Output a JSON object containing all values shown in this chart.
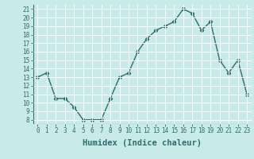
{
  "x": [
    0,
    1,
    2,
    3,
    4,
    5,
    6,
    7,
    8,
    9,
    10,
    11,
    12,
    13,
    14,
    15,
    16,
    17,
    18,
    19,
    20,
    21,
    22,
    23
  ],
  "y": [
    13,
    13.5,
    10.5,
    10.5,
    9.5,
    8,
    8,
    8,
    10.5,
    13,
    13.5,
    16,
    17.5,
    18.5,
    19,
    19.5,
    21,
    20.5,
    18.5,
    19.5,
    15,
    13.5,
    15,
    11
  ],
  "line_color": "#2d6e6e",
  "marker": "D",
  "marker_size": 2.2,
  "bg_color": "#c8eae8",
  "grid_color": "#ffffff",
  "xlabel": "Humidex (Indice chaleur)",
  "xlim": [
    -0.5,
    23.5
  ],
  "ylim": [
    7.5,
    21.5
  ],
  "yticks": [
    8,
    9,
    10,
    11,
    12,
    13,
    14,
    15,
    16,
    17,
    18,
    19,
    20,
    21
  ],
  "xticks": [
    0,
    1,
    2,
    3,
    4,
    5,
    6,
    7,
    8,
    9,
    10,
    11,
    12,
    13,
    14,
    15,
    16,
    17,
    18,
    19,
    20,
    21,
    22,
    23
  ],
  "tick_label_size": 5.5,
  "xlabel_size": 7.5,
  "line_width": 1.0
}
